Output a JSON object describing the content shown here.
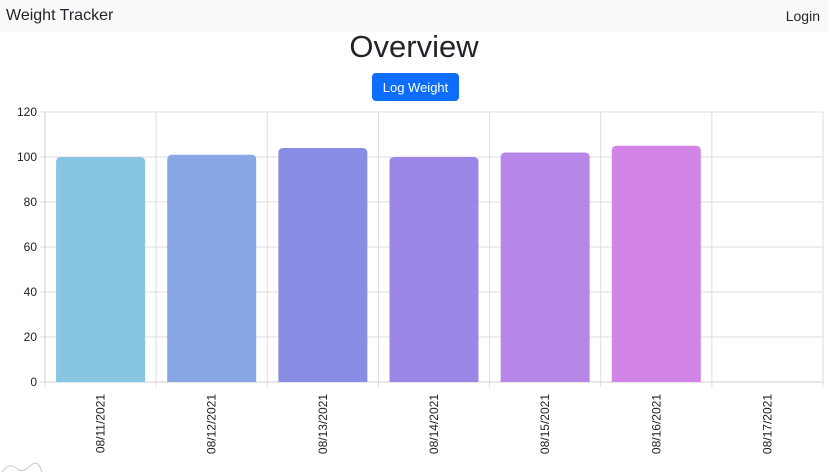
{
  "navbar": {
    "brand": "Weight Tracker",
    "login": "Login"
  },
  "main": {
    "title": "Overview",
    "log_button": "Log Weight"
  },
  "colors": {
    "navbar_bg": "#f8f9fa",
    "button_bg": "#0d6efd",
    "grid": "#dcdcdc",
    "bars": [
      "#87c5e3",
      "#89a7e4",
      "#898ce5",
      "#9c87e6",
      "#b687e6",
      "#d384e7"
    ]
  },
  "chart_data": {
    "type": "bar",
    "categories": [
      "08/11/2021",
      "08/12/2021",
      "08/13/2021",
      "08/14/2021",
      "08/15/2021",
      "08/16/2021",
      "08/17/2021"
    ],
    "values": [
      100,
      101,
      104,
      100,
      102,
      105,
      null
    ],
    "title": "",
    "xlabel": "",
    "ylabel": "",
    "ylim": [
      0,
      120
    ],
    "yticks": [
      0,
      20,
      40,
      60,
      80,
      100,
      120
    ],
    "grid": true,
    "legend": "none"
  }
}
